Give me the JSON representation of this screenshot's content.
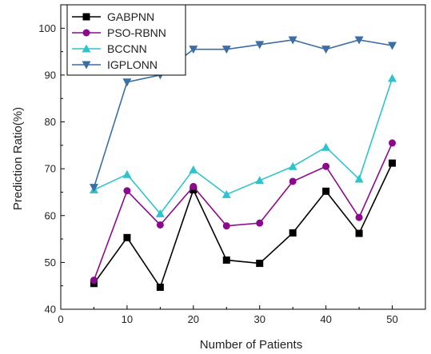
{
  "chart_data": {
    "type": "line",
    "title": "",
    "xlabel": "Number of Patients",
    "ylabel": "Prediction Ratio(%)",
    "xlim": [
      0,
      55
    ],
    "ylim": [
      40,
      105
    ],
    "xticks": [
      0,
      10,
      20,
      30,
      40,
      50
    ],
    "yticks": [
      40,
      50,
      60,
      70,
      80,
      90,
      100
    ],
    "grid": false,
    "legend_position": "top-left",
    "x": [
      5,
      10,
      15,
      20,
      25,
      30,
      35,
      40,
      45,
      50
    ],
    "series": [
      {
        "name": "GABPNN",
        "color": "#000000",
        "marker": "square",
        "values": [
          45.5,
          55.3,
          44.7,
          65.5,
          50.5,
          49.8,
          56.3,
          65.2,
          56.2,
          71.2
        ]
      },
      {
        "name": "PSO-RBNN",
        "color": "#8b0a8b",
        "marker": "circle",
        "values": [
          46.2,
          65.3,
          58.0,
          66.2,
          57.8,
          58.4,
          67.3,
          70.5,
          59.6,
          75.5
        ]
      },
      {
        "name": "BCCNN",
        "color": "#2fc4cc",
        "marker": "triangle-up",
        "values": [
          65.5,
          68.8,
          60.4,
          69.8,
          64.5,
          67.5,
          70.5,
          74.6,
          67.8,
          89.3
        ]
      },
      {
        "name": "IGPLONN",
        "color": "#3a6ea5",
        "marker": "triangle-down",
        "values": [
          66.0,
          88.5,
          90.0,
          95.5,
          95.5,
          96.5,
          97.5,
          95.5,
          97.5,
          96.3
        ]
      }
    ]
  }
}
